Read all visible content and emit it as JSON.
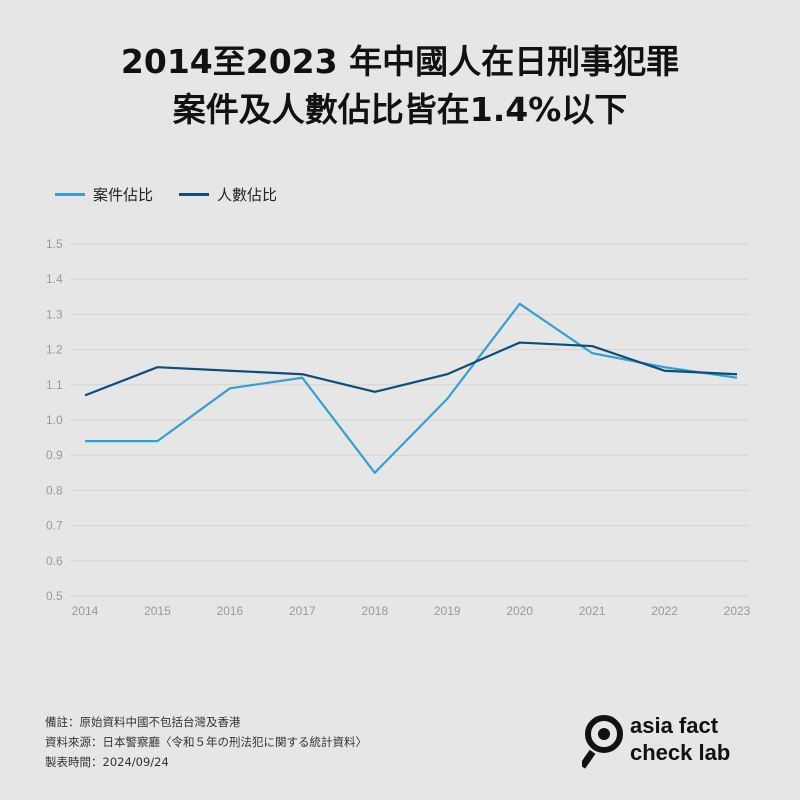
{
  "title": {
    "line1": "2014至2023 年中國人在日刑事犯罪",
    "line2": "案件及人數佔比皆在1.4%以下"
  },
  "legend": [
    {
      "label": "案件佔比",
      "color": "#34a0d2"
    },
    {
      "label": "人數佔比",
      "color": "#0f4c7a"
    }
  ],
  "chart_data": {
    "type": "line",
    "title": "2014至2023 年中國人在日刑事犯罪 案件及人數佔比皆在1.4%以下",
    "x": [
      "2014",
      "2015",
      "2016",
      "2017",
      "2018",
      "2019",
      "2020",
      "2021",
      "2022",
      "2023"
    ],
    "series": [
      {
        "name": "案件佔比",
        "color": "#34a0d2",
        "values": [
          0.94,
          0.94,
          1.09,
          1.12,
          0.85,
          1.06,
          1.33,
          1.19,
          1.15,
          1.12
        ]
      },
      {
        "name": "人數佔比",
        "color": "#0f4c7a",
        "values": [
          1.07,
          1.15,
          1.14,
          1.13,
          1.08,
          1.13,
          1.22,
          1.21,
          1.14,
          1.13
        ]
      }
    ],
    "ylim": [
      0.5,
      1.5
    ],
    "yticks": [
      "0.5",
      "0.6",
      "0.7",
      "0.8",
      "0.9",
      "1.0",
      "1.1",
      "1.2",
      "1.3",
      "1.4",
      "1.5"
    ],
    "grid": true,
    "legend_position": "top-left"
  },
  "notes": {
    "remark": "備註：原始資料中國不包括台灣及香港",
    "source": "資料來源：日本警察廳〈令和５年の刑法犯に関する統計資料〉",
    "date": "製表時間：2024/09/24"
  },
  "logo": {
    "line1": "asia fact",
    "line2": "check lab"
  }
}
